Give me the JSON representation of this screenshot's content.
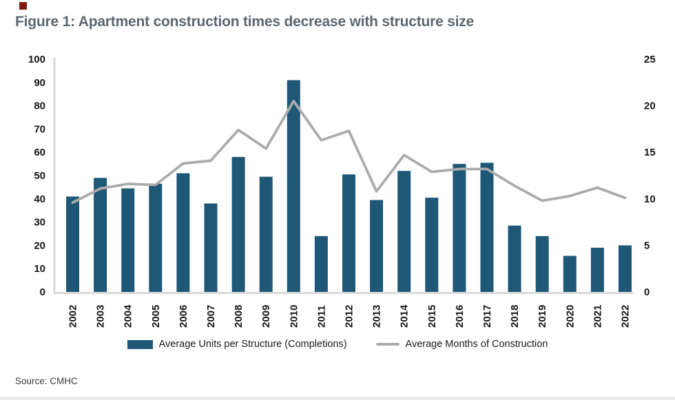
{
  "title": "Figure 1: Apartment construction times decrease with structure size",
  "source": "Source: CMHC",
  "colors": {
    "bar": "#1f5876",
    "line": "#ababab",
    "axis_line": "#d9d9d9",
    "title_text": "#5c6670",
    "tick_text": "#141414",
    "brand_red": "#7e1c10"
  },
  "legend": {
    "bar_label": "Average Units per Structure (Completions)",
    "line_label": "Average Months of Construction"
  },
  "chart_data": {
    "type": "bar+line",
    "title": "Figure 1: Apartment construction times decrease with structure size",
    "categories": [
      "2002",
      "2003",
      "2004",
      "2005",
      "2006",
      "2007",
      "2008",
      "2009",
      "2010",
      "2011",
      "2012",
      "2013",
      "2014",
      "2015",
      "2016",
      "2017",
      "2018",
      "2019",
      "2020",
      "2021",
      "2022"
    ],
    "series": [
      {
        "name": "Average Units per Structure (Completions)",
        "type": "bar",
        "axis": "left",
        "values": [
          41,
          49,
          44.5,
          46.5,
          51,
          38,
          58,
          49.5,
          91,
          24,
          50.5,
          39.5,
          52,
          40.5,
          55,
          55.5,
          28.5,
          24,
          15.5,
          19,
          20
        ]
      },
      {
        "name": "Average Months of Construction",
        "type": "line",
        "axis": "right",
        "values": [
          9.6,
          11.1,
          11.6,
          11.5,
          13.8,
          14.1,
          17.4,
          15.4,
          20.5,
          16.3,
          17.3,
          10.8,
          14.7,
          12.9,
          13.2,
          13.2,
          11.4,
          9.8,
          10.3,
          11.2,
          10.1
        ]
      }
    ],
    "left_axis": {
      "min": 0,
      "max": 100,
      "step": 10
    },
    "right_axis": {
      "min": 0,
      "max": 25,
      "step": 5
    },
    "grid": false,
    "legend_position": "bottom"
  }
}
